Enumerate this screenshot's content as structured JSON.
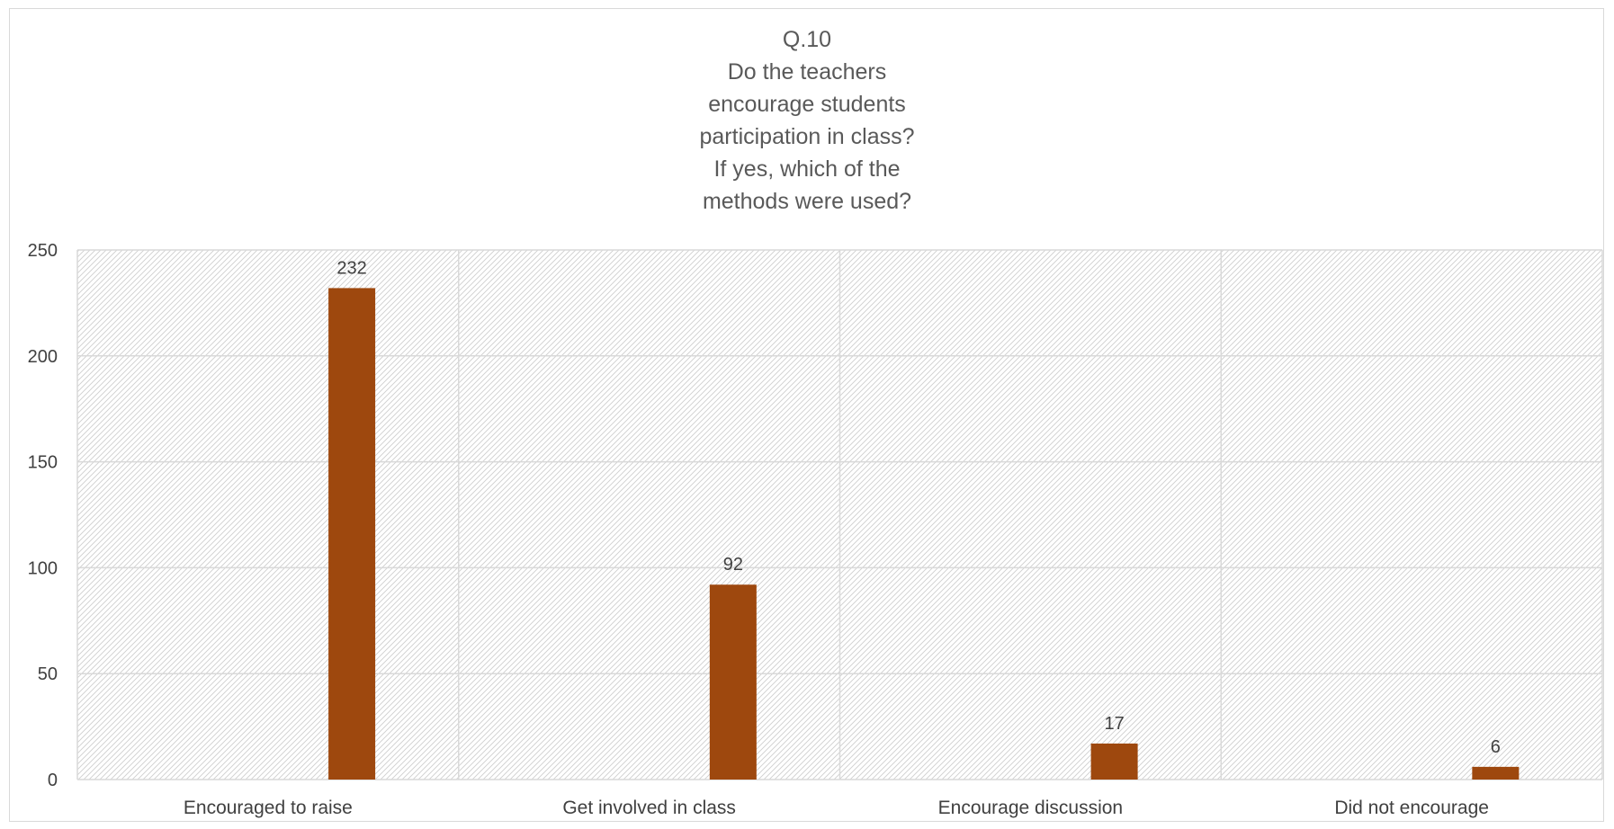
{
  "chart_data": {
    "type": "bar",
    "title_lines": [
      "Q.10",
      "Do the teachers",
      "encourage students",
      "participation in class?",
      "If yes, which of the",
      "methods were used?"
    ],
    "categories": [
      "Encouraged to raise",
      "Get involved in class",
      "Encourage discussion",
      "Did not encourage"
    ],
    "series": [
      {
        "values": [
          232,
          92,
          17,
          6
        ],
        "color": "#9e480e"
      }
    ],
    "data_labels": [
      "232",
      "92",
      "17",
      "6"
    ],
    "xlabel": "",
    "ylabel": "",
    "ylim": [
      0,
      250
    ],
    "yticks": [
      0,
      50,
      100,
      150,
      200,
      250
    ],
    "grid": true,
    "plot_background": "hatched",
    "legend": "none"
  }
}
